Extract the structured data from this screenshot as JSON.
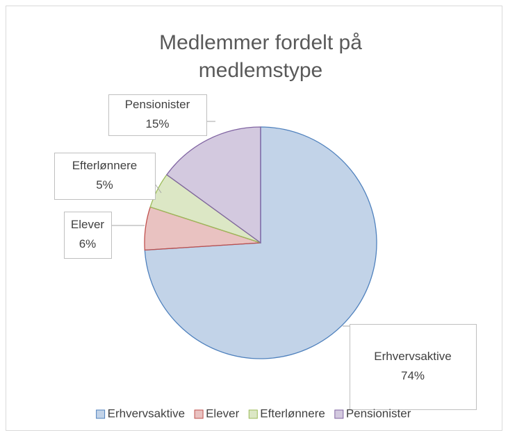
{
  "chart_data": {
    "type": "pie",
    "title": "Medlemmer fordelt på medlemstype",
    "categories": [
      "Erhvervsaktive",
      "Elever",
      "Efterlønnere",
      "Pensionister"
    ],
    "values": [
      74,
      6,
      5,
      15
    ],
    "value_labels": [
      "74%",
      "6%",
      "5%",
      "15%"
    ],
    "colors": [
      "#4f81bd",
      "#c0504d",
      "#9bbb59",
      "#8064a2"
    ],
    "legend": "bottom"
  }
}
